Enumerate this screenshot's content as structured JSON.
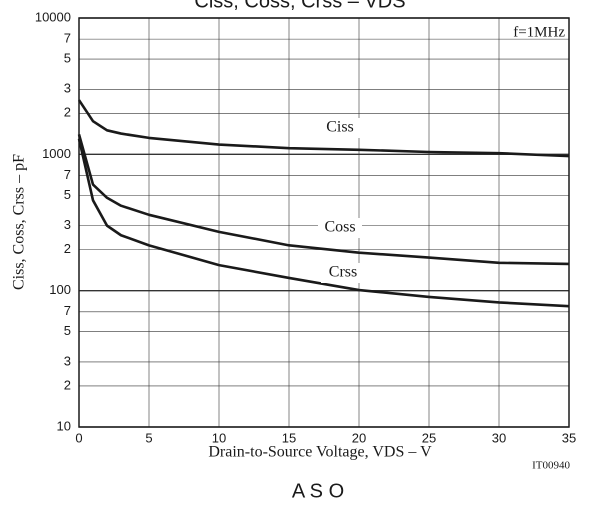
{
  "chart_data": {
    "type": "line",
    "title": "Ciss, Coss, Crss – VDS",
    "xlabel": "Drain-to-Source Voltage, VDS  –  V",
    "ylabel": "Ciss, Coss, Crss  –  pF",
    "annotations": [
      "f=1MHz",
      "IT00940"
    ],
    "footer": "A S O",
    "x": [
      0,
      1,
      2,
      3,
      5,
      10,
      15,
      20,
      25,
      30,
      35
    ],
    "series": [
      {
        "name": "Ciss",
        "color": "#1a1a1a",
        "values": [
          2500,
          1750,
          1500,
          1420,
          1320,
          1180,
          1110,
          1080,
          1040,
          1020,
          970
        ]
      },
      {
        "name": "Coss",
        "color": "#1a1a1a",
        "values": [
          1400,
          600,
          480,
          420,
          360,
          270,
          215,
          190,
          175,
          160,
          157
        ]
      },
      {
        "name": "Crss",
        "color": "#1a1a1a",
        "values": [
          1300,
          460,
          300,
          255,
          215,
          154,
          124,
          101,
          90,
          82,
          77
        ]
      }
    ],
    "xlim": [
      0,
      35
    ],
    "xticks": [
      0,
      5,
      10,
      15,
      20,
      25,
      30,
      35
    ],
    "ylim": [
      10,
      10000
    ],
    "log_y": true,
    "grid": true,
    "yticks": [
      10,
      {
        "value": 20,
        "label": "2"
      },
      {
        "value": 30,
        "label": "3"
      },
      {
        "value": 50,
        "label": "5"
      },
      {
        "value": 70,
        "label": "7"
      },
      100,
      {
        "value": 200,
        "label": "2"
      },
      {
        "value": 300,
        "label": "3"
      },
      {
        "value": 500,
        "label": "5"
      },
      {
        "value": 700,
        "label": "7"
      },
      1000,
      {
        "value": 2000,
        "label": "2"
      },
      {
        "value": 3000,
        "label": "3"
      },
      {
        "value": 5000,
        "label": "5"
      },
      {
        "value": 7000,
        "label": "7"
      },
      10000
    ]
  }
}
